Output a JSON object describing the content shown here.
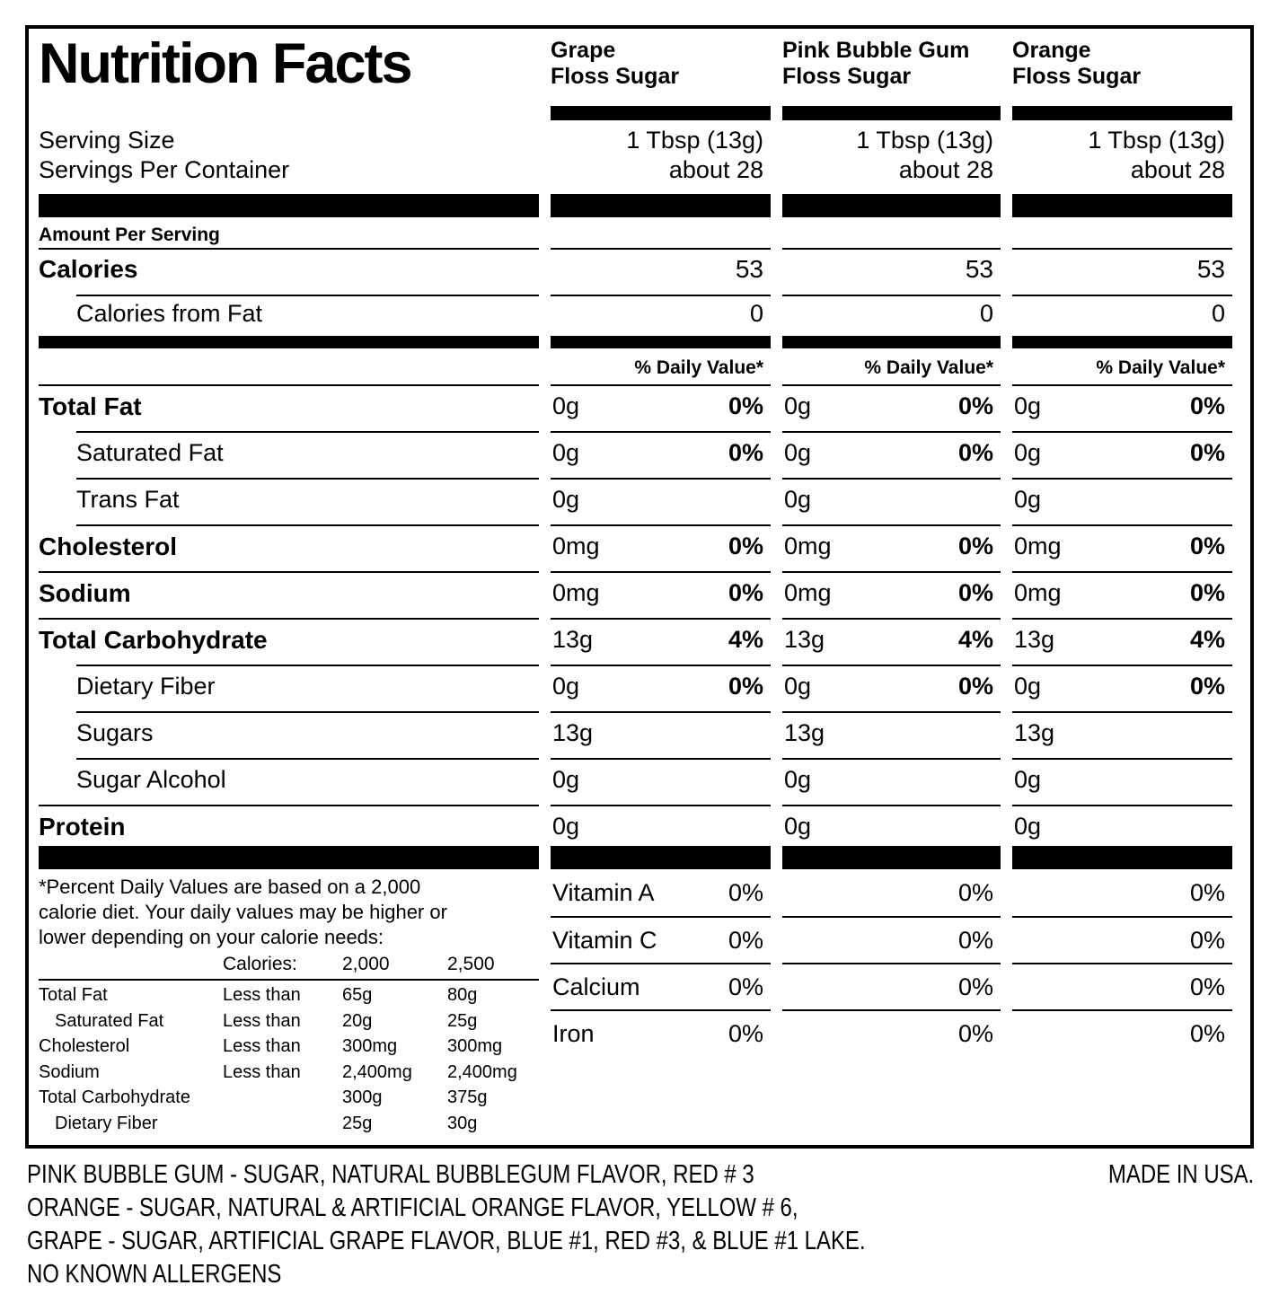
{
  "title": "Nutrition Facts",
  "columns": [
    {
      "title_lines": [
        "Grape",
        "Floss Sugar"
      ]
    },
    {
      "title_lines": [
        "Pink Bubble Gum",
        "Floss Sugar"
      ]
    },
    {
      "title_lines": [
        "Orange",
        "Floss Sugar"
      ]
    }
  ],
  "serving": {
    "size_label": "Serving Size",
    "per_container_label": "Servings Per Container",
    "size_values": [
      "1 Tbsp (13g)",
      "1 Tbsp (13g)",
      "1 Tbsp (13g)"
    ],
    "per_container_values": [
      "about 28",
      "about 28",
      "about 28"
    ]
  },
  "amount_per_serving_label": "Amount Per Serving",
  "calories_row": {
    "label": "Calories",
    "values": [
      "53",
      "53",
      "53"
    ]
  },
  "calories_from_fat_row": {
    "label": "Calories from Fat",
    "values": [
      "0",
      "0",
      "0"
    ]
  },
  "daily_value_header": "% Daily Value*",
  "nutrient_rows": [
    {
      "label": "Total Fat",
      "bold": true,
      "indent": false,
      "sep_indent": false,
      "amounts": [
        "0g",
        "0g",
        "0g"
      ],
      "dvs": [
        "0%",
        "0%",
        "0%"
      ]
    },
    {
      "label": "Saturated Fat",
      "bold": false,
      "indent": true,
      "sep_indent": true,
      "amounts": [
        "0g",
        "0g",
        "0g"
      ],
      "dvs": [
        "0%",
        "0%",
        "0%"
      ]
    },
    {
      "label": "Trans Fat",
      "bold": false,
      "indent": true,
      "sep_indent": true,
      "amounts": [
        "0g",
        "0g",
        "0g"
      ],
      "dvs": [
        "",
        "",
        ""
      ]
    },
    {
      "label": "Cholesterol",
      "bold": true,
      "indent": false,
      "sep_indent": true,
      "amounts": [
        "0mg",
        "0mg",
        "0mg"
      ],
      "dvs": [
        "0%",
        "0%",
        "0%"
      ]
    },
    {
      "label": "Sodium",
      "bold": true,
      "indent": false,
      "sep_indent": false,
      "amounts": [
        "0mg",
        "0mg",
        "0mg"
      ],
      "dvs": [
        "0%",
        "0%",
        "0%"
      ]
    },
    {
      "label": "Total Carbohydrate",
      "bold": true,
      "indent": false,
      "sep_indent": false,
      "amounts": [
        "13g",
        "13g",
        "13g"
      ],
      "dvs": [
        "4%",
        "4%",
        "4%"
      ]
    },
    {
      "label": "Dietary Fiber",
      "bold": false,
      "indent": true,
      "sep_indent": true,
      "amounts": [
        "0g",
        "0g",
        "0g"
      ],
      "dvs": [
        "0%",
        "0%",
        "0%"
      ]
    },
    {
      "label": "Sugars",
      "bold": false,
      "indent": true,
      "sep_indent": true,
      "amounts": [
        "13g",
        "13g",
        "13g"
      ],
      "dvs": [
        "",
        "",
        ""
      ]
    },
    {
      "label": "Sugar Alcohol",
      "bold": false,
      "indent": true,
      "sep_indent": true,
      "amounts": [
        "0g",
        "0g",
        "0g"
      ],
      "dvs": [
        "",
        "",
        ""
      ]
    },
    {
      "label": "Protein",
      "bold": true,
      "indent": false,
      "sep_indent": false,
      "amounts": [
        "0g",
        "0g",
        "0g"
      ],
      "dvs": [
        "",
        "",
        ""
      ]
    }
  ],
  "vitamin_rows": [
    {
      "label": "Vitamin A",
      "values": [
        "0%",
        "0%",
        "0%"
      ]
    },
    {
      "label": "Vitamin C",
      "values": [
        "0%",
        "0%",
        "0%"
      ]
    },
    {
      "label": "Calcium",
      "values": [
        "0%",
        "0%",
        "0%"
      ]
    },
    {
      "label": "Iron",
      "values": [
        "0%",
        "0%",
        "0%"
      ]
    }
  ],
  "footnote": {
    "text_lines": [
      "*Percent Daily Values are based on a 2,000",
      "calorie diet. Your daily values may be higher or",
      "lower depending on your calorie needs:"
    ],
    "table_header": {
      "label": "Calories:",
      "col1": "2,000",
      "col2": "2,500"
    },
    "table_rows": [
      {
        "label": "Total Fat",
        "indent": false,
        "qualifier": "Less than",
        "v2000": "65g",
        "v2500": "80g"
      },
      {
        "label": "Saturated Fat",
        "indent": true,
        "qualifier": "Less than",
        "v2000": "20g",
        "v2500": "25g"
      },
      {
        "label": "Cholesterol",
        "indent": false,
        "qualifier": "Less than",
        "v2000": "300mg",
        "v2500": "300mg"
      },
      {
        "label": "Sodium",
        "indent": false,
        "qualifier": "Less than",
        "v2000": "2,400mg",
        "v2500": "2,400mg"
      },
      {
        "label": "Total Carbohydrate",
        "indent": false,
        "qualifier": "",
        "v2000": "300g",
        "v2500": "375g"
      },
      {
        "label": "Dietary Fiber",
        "indent": true,
        "qualifier": "",
        "v2000": "25g",
        "v2500": "30g"
      }
    ]
  },
  "ingredients_lines": [
    "PINK BUBBLE GUM - SUGAR, NATURAL BUBBLEGUM FLAVOR, RED # 3",
    "ORANGE - SUGAR, NATURAL & ARTIFICIAL ORANGE FLAVOR, YELLOW # 6,",
    "GRAPE - SUGAR, ARTIFICIAL GRAPE FLAVOR, BLUE #1, RED #3, & BLUE #1 LAKE.",
    "NO KNOWN ALLERGENS"
  ],
  "made_in": "MADE IN USA."
}
